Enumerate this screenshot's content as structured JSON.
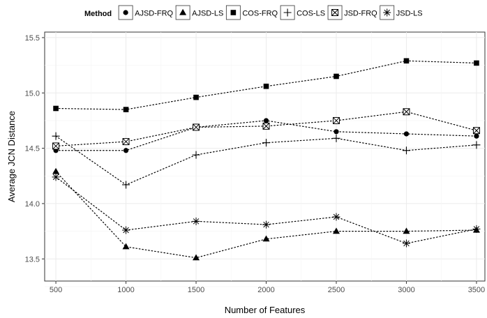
{
  "chart_data": {
    "type": "line",
    "xlabel": "Number of Features",
    "ylabel": "Average JCN Distance",
    "x": [
      500,
      1000,
      1500,
      2000,
      2500,
      3000,
      3500
    ],
    "xlim": [
      420,
      3560
    ],
    "ylim": [
      13.3,
      15.55
    ],
    "x_ticks": [
      "500",
      "1000",
      "1500",
      "2000",
      "2500",
      "3000",
      "3500"
    ],
    "y_ticks": [
      "13.5",
      "14.0",
      "14.5",
      "15.0",
      "15.5"
    ],
    "grid": true,
    "legend_title": "Method",
    "legend_position": "top",
    "series": [
      {
        "name": "AJSD-FRQ",
        "marker": "circle",
        "values": [
          14.48,
          14.48,
          14.69,
          14.75,
          14.65,
          14.63,
          14.61
        ]
      },
      {
        "name": "AJSD-LS",
        "marker": "triangle",
        "values": [
          14.29,
          13.61,
          13.51,
          13.68,
          13.75,
          13.75,
          13.76
        ]
      },
      {
        "name": "COS-FRQ",
        "marker": "square",
        "values": [
          14.86,
          14.85,
          14.96,
          15.06,
          15.15,
          15.29,
          15.27
        ]
      },
      {
        "name": "COS-LS",
        "marker": "plus",
        "values": [
          14.61,
          14.17,
          14.44,
          14.55,
          14.59,
          14.48,
          14.53
        ]
      },
      {
        "name": "JSD-FRQ",
        "marker": "boxed-x",
        "values": [
          14.52,
          14.56,
          14.69,
          14.7,
          14.75,
          14.83,
          14.66
        ]
      },
      {
        "name": "JSD-LS",
        "marker": "asterisk",
        "values": [
          14.24,
          13.76,
          13.84,
          13.81,
          13.88,
          13.64,
          13.77
        ]
      }
    ]
  }
}
